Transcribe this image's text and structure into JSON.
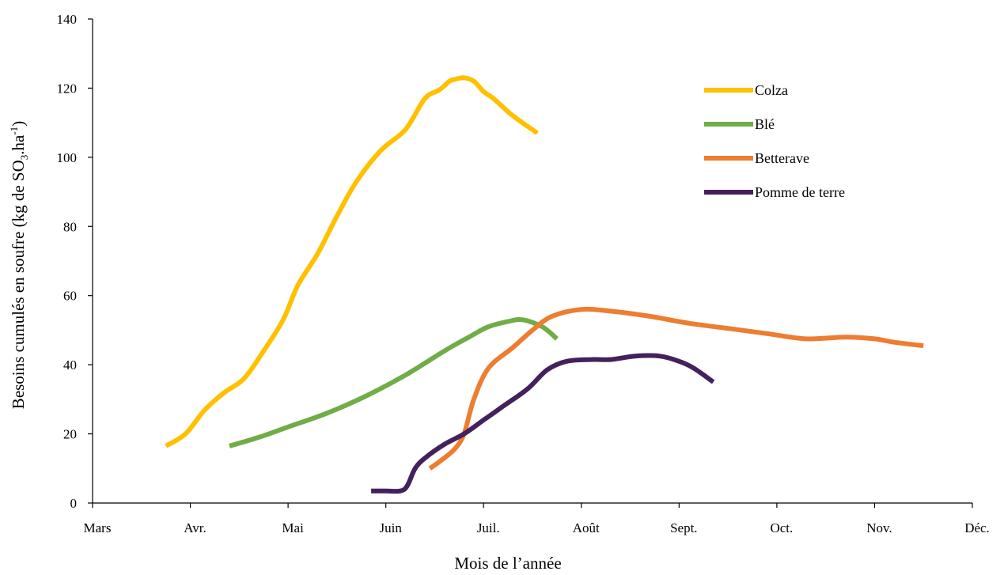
{
  "chart_data": {
    "type": "line",
    "title": "",
    "xlabel": "Mois de l’année",
    "ylabel": {
      "before": "Besoins cumulés en soufre (kg de SO",
      "sub": "3",
      "mid": ".ha",
      "sup": "-1",
      "after": ")"
    },
    "categories": [
      "Mars",
      "Avr.",
      "Mai",
      "Juin",
      "Juil.",
      "Août",
      "Sept.",
      "Oct.",
      "Nov.",
      "Déc."
    ],
    "xlim": [
      0,
      9
    ],
    "ylim": [
      0,
      140
    ],
    "yticks": [
      0,
      20,
      40,
      60,
      80,
      100,
      120,
      140
    ],
    "grid": false,
    "legend_position": "right",
    "series": [
      {
        "name": "Colza",
        "color": "#FFC000",
        "x": [
          0.75,
          0.95,
          1.15,
          1.35,
          1.55,
          1.75,
          1.95,
          2.1,
          2.3,
          2.5,
          2.7,
          2.95,
          3.2,
          3.4,
          3.55,
          3.65,
          3.7,
          3.8,
          3.9,
          4.0,
          4.1,
          4.3,
          4.55
        ],
        "y": [
          16.5,
          20,
          27,
          32,
          36,
          44,
          53,
          63,
          72,
          83,
          93,
          102,
          108,
          117,
          119.5,
          122,
          122.5,
          123,
          122,
          119,
          117,
          112,
          107
        ]
      },
      {
        "name": "Blé",
        "color": "#70AD47",
        "x": [
          1.4,
          1.7,
          2.0,
          2.4,
          2.8,
          3.2,
          3.6,
          3.85,
          4.05,
          4.25,
          4.4,
          4.6,
          4.75
        ],
        "y": [
          16.5,
          19,
          22,
          26,
          31,
          37,
          44,
          48,
          51,
          52.5,
          53,
          51,
          47.5
        ]
      },
      {
        "name": "Betterave",
        "color": "#ED7D31",
        "x": [
          3.45,
          3.55,
          3.7,
          3.8,
          3.9,
          4.05,
          4.3,
          4.5,
          4.7,
          5.0,
          5.3,
          5.7,
          6.1,
          6.5,
          6.9,
          7.3,
          7.7,
          8.0,
          8.2,
          8.5
        ],
        "y": [
          10,
          12,
          15.5,
          20,
          30,
          39,
          45,
          50,
          54,
          56,
          55.5,
          54,
          52,
          50.5,
          49,
          47.5,
          48,
          47.5,
          46.5,
          45.5
        ]
      },
      {
        "name": "Pomme de terre",
        "color": "#44215C",
        "x": [
          2.85,
          3.0,
          3.15,
          3.22,
          3.3,
          3.4,
          3.6,
          3.8,
          4.0,
          4.2,
          4.45,
          4.65,
          4.85,
          5.1,
          5.3,
          5.55,
          5.8,
          6.0,
          6.15,
          6.35
        ],
        "y": [
          3.5,
          3.5,
          3.5,
          5,
          10,
          13,
          17,
          20,
          24,
          28,
          33,
          38.5,
          41,
          41.5,
          41.5,
          42.5,
          42.5,
          41,
          39,
          35
        ]
      }
    ]
  }
}
